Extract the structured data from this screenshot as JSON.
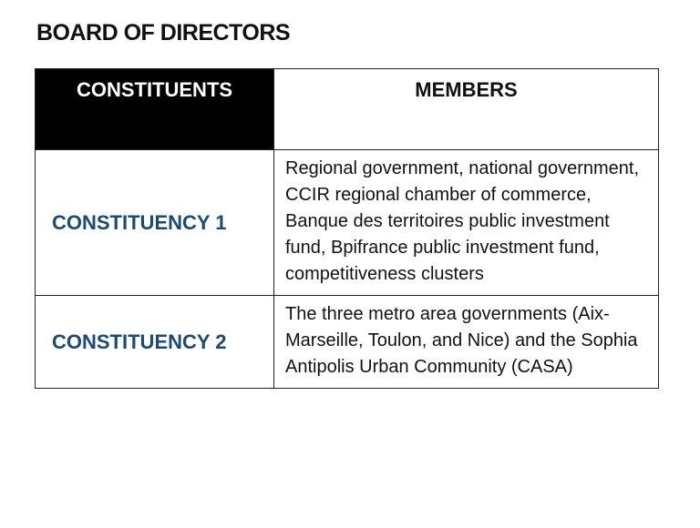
{
  "header": {
    "title": "BOARD OF DIRECTORS"
  },
  "table": {
    "columns": [
      "CONSTITUENTS",
      "MEMBERS"
    ],
    "rows": [
      [
        "CONSTITUENCY 1",
        "Regional government, national government, CCIR regional chamber of commerce, Banque des territoires public investment fund, Bpifrance public investment fund, competitiveness clusters"
      ],
      [
        "CONSTITUENCY 2",
        "The three metro area governments (Aix-Marseille, Toulon, and Nice) and the Sophia Antipolis Urban Community (CASA)"
      ]
    ]
  }
}
